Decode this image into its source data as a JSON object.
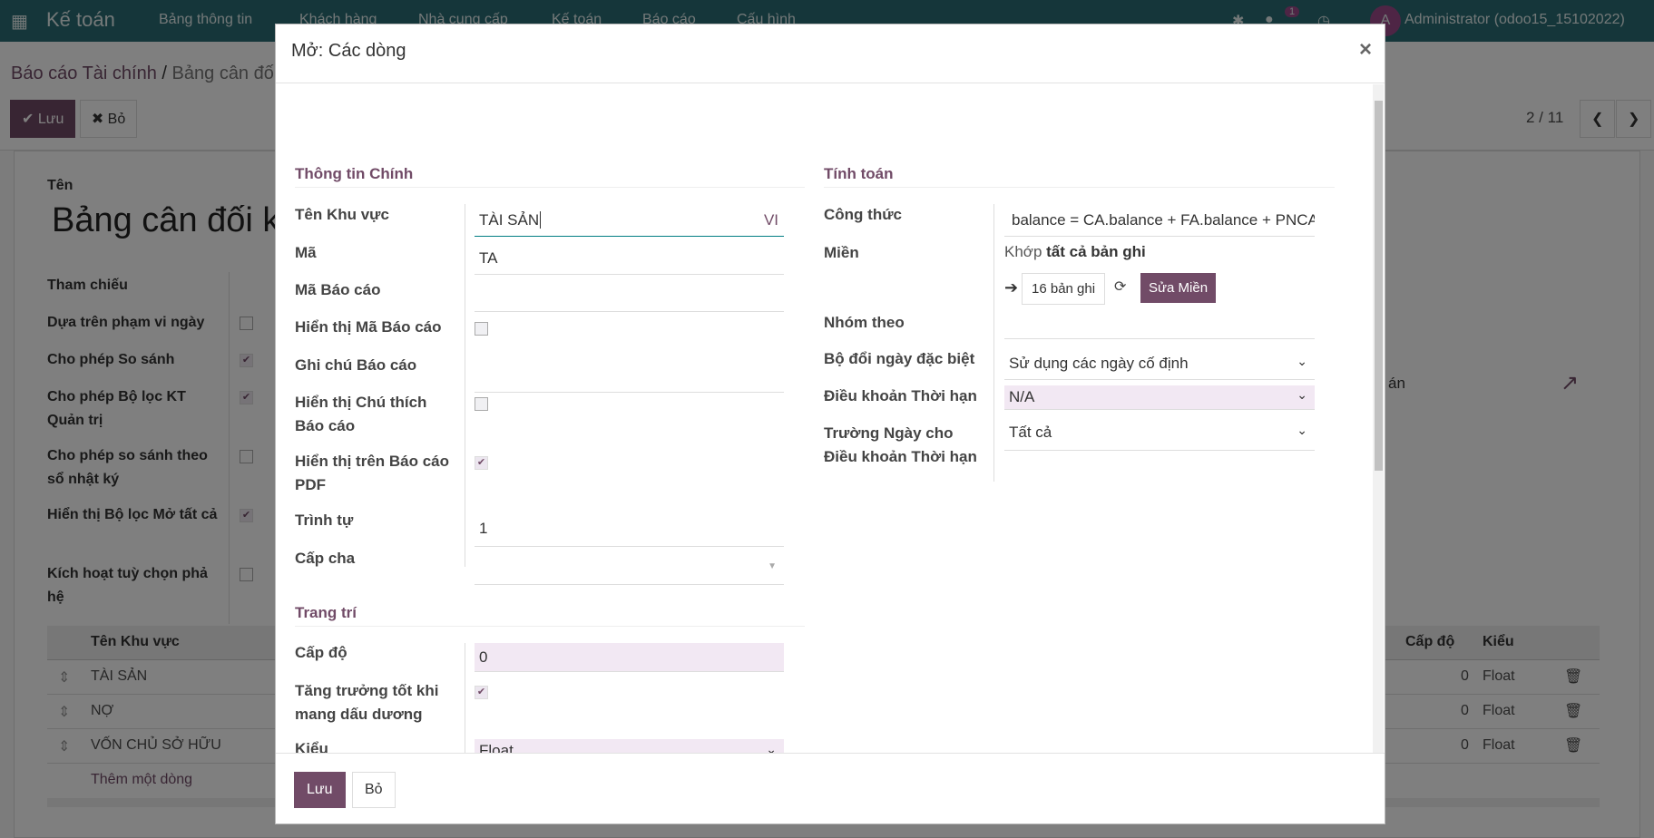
{
  "navbar": {
    "app_title": "Kế toán",
    "menus": [
      "Bảng thông tin",
      "Khách hàng",
      "Nhà cung cấp",
      "Kế toán",
      "Báo cáo",
      "Cấu hình"
    ],
    "chat_badge": "1",
    "avatar_letter": "A",
    "user": "Administrator (odoo15_15102022)"
  },
  "control_panel": {
    "breadcrumb_parent": "Báo cáo Tài chính",
    "breadcrumb_sep": "/",
    "breadcrumb_current": "Bảng cân đối kế toán",
    "save_label": "✔ Lưu",
    "discard_label": "✖ Bỏ",
    "pager": "2 / 11"
  },
  "sheet": {
    "name_label": "Tên",
    "name_value": "Bảng cân đối kế toán",
    "fields": [
      {
        "label": "Tham chiếu"
      },
      {
        "label": "Dựa trên phạm vi ngày",
        "checked": false
      },
      {
        "label": "Cho phép So sánh",
        "checked": true
      },
      {
        "label": "Cho phép Bộ lọc KT Quản trị",
        "checked": true
      },
      {
        "label": "Cho phép so sánh theo sổ nhật ký",
        "checked": false
      },
      {
        "label": "Hiển thị Bộ lọc Mở tất cả",
        "checked": true
      },
      {
        "label": "Kích hoạt tuỳ chọn phả hệ",
        "checked": false
      }
    ],
    "right_field_value": "án",
    "table": {
      "headers": [
        "Tên Khu vực",
        "Cấp độ",
        "Kiểu"
      ],
      "rows": [
        {
          "name": "TÀI SẢN",
          "level": "0",
          "type": "Float"
        },
        {
          "name": "NỢ",
          "level": "0",
          "type": "Float"
        },
        {
          "name": "VỐN CHỦ SỞ HỮU",
          "level": "0",
          "type": "Float"
        }
      ],
      "add_line": "Thêm một dòng"
    }
  },
  "dialog": {
    "title": "Mở: Các dòng",
    "close": "×",
    "main_section": "Thông tin Chính",
    "name_label": "Tên Khu vực",
    "name_value": "TÀI SẢN",
    "lang": "VI",
    "code_label": "Mã",
    "code_value": "TA",
    "report_code_label": "Mã Báo cáo",
    "report_code_value": "",
    "show_code_label": "Hiển thị Mã Báo cáo",
    "show_code": false,
    "note_label": "Ghi chú Báo cáo",
    "note_value": "",
    "show_note_label": "Hiển thị Chú thích Báo cáo",
    "show_note": false,
    "show_pdf_label": "Hiển thị trên Báo cáo PDF",
    "show_pdf": true,
    "sequence_label": "Trình tự",
    "sequence_value": "1",
    "parent_label": "Cấp cha",
    "parent_value": "",
    "deco_section": "Trang trí",
    "level_label": "Cấp độ",
    "level_value": "0",
    "growth_label": "Tăng trưởng tốt khi mang dấu dương",
    "growth": true,
    "type_label": "Kiểu",
    "type_value": "Float",
    "calc_section": "Tính toán",
    "formula_label": "Công thức",
    "formula_value": "balance = CA.balance + FA.balance + PNCA.balance",
    "domain_label": "Miền",
    "domain_match": "Khớp",
    "domain_match_bold": "tất cả bản ghi",
    "domain_count": "16 bản ghi",
    "domain_edit": "Sửa Miền",
    "groupby_label": "Nhóm theo",
    "groupby_value": "",
    "date_filter_label": "Bộ đổi ngày đặc biệt",
    "date_filter_value": "Sử dụng các ngày cố định",
    "payment_term_label": "Điều khoản Thời hạn",
    "payment_term_value": "N/A",
    "date_field_label": "Trường Ngày cho Điều khoản Thời hạn",
    "date_field_value": "Tất cả",
    "save_label": "Lưu",
    "discard_label": "Bỏ"
  },
  "colors": {
    "primary": "#714B67",
    "navbar": "#2b6d74"
  }
}
